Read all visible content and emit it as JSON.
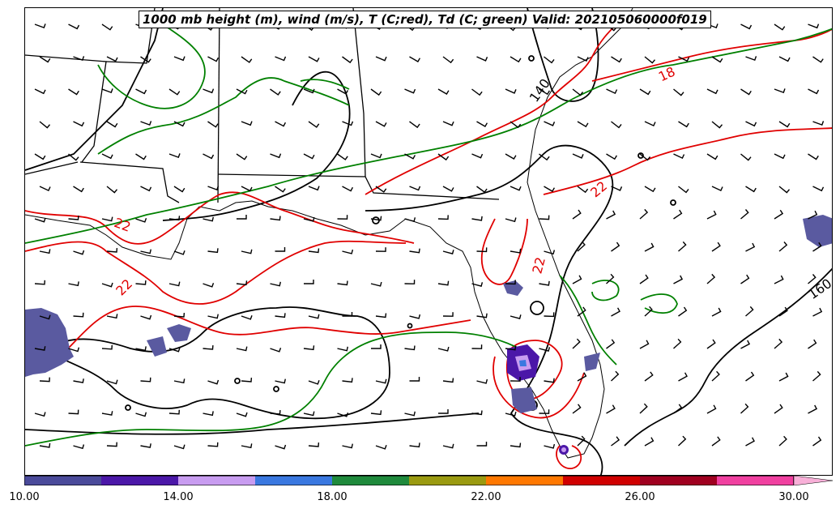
{
  "title": "1000 mb height (m), wind (m/s), T (C;red), Td (C; green) Valid: 202105060000f019",
  "colors": {
    "height": "#000000",
    "temperature": "#e00000",
    "dewpoint": "#008000",
    "precip_dark": "#5a5aa0"
  },
  "contour_labels": {
    "height": [
      "140",
      "160"
    ],
    "temperature": [
      "18",
      "22",
      "22",
      "22",
      "22"
    ]
  },
  "colorbar": {
    "min": 10,
    "max": 30,
    "bins": [
      {
        "from": 10,
        "to": 12,
        "color": "#4a4a9a"
      },
      {
        "from": 12,
        "to": 14,
        "color": "#4b17a8"
      },
      {
        "from": 14,
        "to": 16,
        "color": "#c89cf0"
      },
      {
        "from": 16,
        "to": 18,
        "color": "#3a78e0"
      },
      {
        "from": 18,
        "to": 20,
        "color": "#1f8a3c"
      },
      {
        "from": 20,
        "to": 22,
        "color": "#9a9a10"
      },
      {
        "from": 22,
        "to": 24,
        "color": "#ff7800"
      },
      {
        "from": 24,
        "to": 26,
        "color": "#d00000"
      },
      {
        "from": 26,
        "to": 28,
        "color": "#a00020"
      },
      {
        "from": 28,
        "to": 30,
        "color": "#f040a0"
      }
    ],
    "extend_color": "#f8b0d8",
    "ticks": [
      "10.00",
      "14.00",
      "18.00",
      "22.00",
      "26.00",
      "30.00"
    ]
  }
}
